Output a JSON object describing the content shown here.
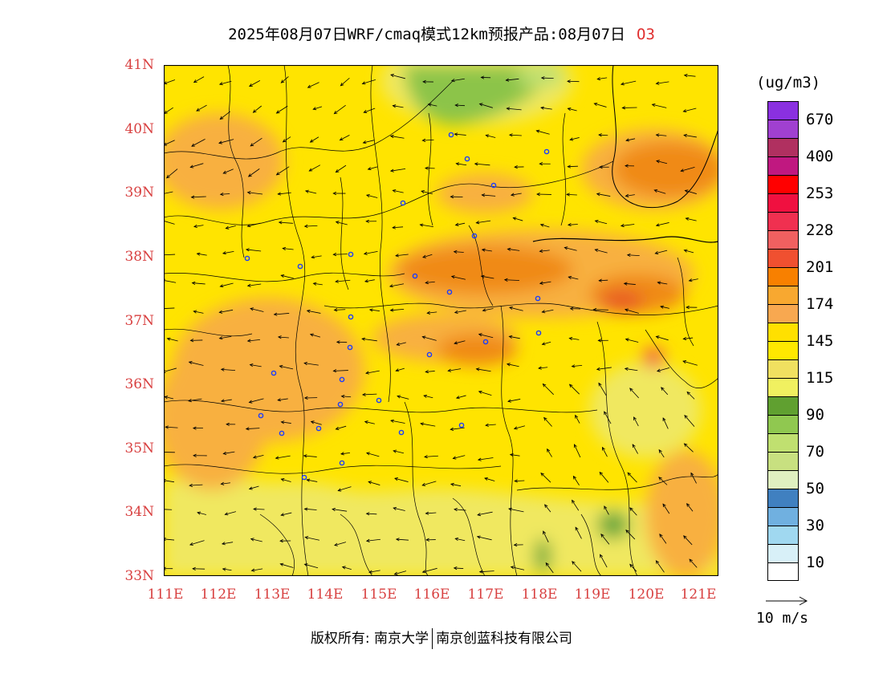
{
  "title": {
    "text": "2025年08月07日WRF/cmaq模式12km预报产品:08月07日",
    "species": "O3"
  },
  "map": {
    "lat_labels": [
      "41N",
      "40N",
      "39N",
      "38N",
      "37N",
      "36N",
      "35N",
      "34N",
      "33N"
    ],
    "lon_labels": [
      "111E",
      "112E",
      "113E",
      "114E",
      "115E",
      "116E",
      "117E",
      "118E",
      "119E",
      "120E",
      "121E"
    ],
    "lat_range": [
      33,
      41
    ],
    "lon_range": [
      111,
      121.35
    ]
  },
  "colorbar": {
    "unit": "(ug/m3)",
    "colors": [
      "#8a30e0",
      "#a040d0",
      "#b03060",
      "#c01880",
      "#ff0000",
      "#f01040",
      "#f03050",
      "#f06060",
      "#f05030",
      "#f88000",
      "#f8a830",
      "#f8a850",
      "#ffe000",
      "#ffe800",
      "#f0e060",
      "#f0f060",
      "#60a030",
      "#90c850",
      "#c0e070",
      "#c8e080",
      "#e0f0c0",
      "#4080c0",
      "#70b0e0",
      "#a0d8f0",
      "#d8f0f8",
      "#ffffff"
    ],
    "labels": [
      "670",
      "400",
      "253",
      "228",
      "201",
      "174",
      "145",
      "115",
      "90",
      "70",
      "50",
      "30",
      "10"
    ]
  },
  "wind_reference": {
    "label": "10  m/s"
  },
  "footer": {
    "left": "版权所有: 南京大学",
    "right": "南京创蓝科技有限公司"
  }
}
